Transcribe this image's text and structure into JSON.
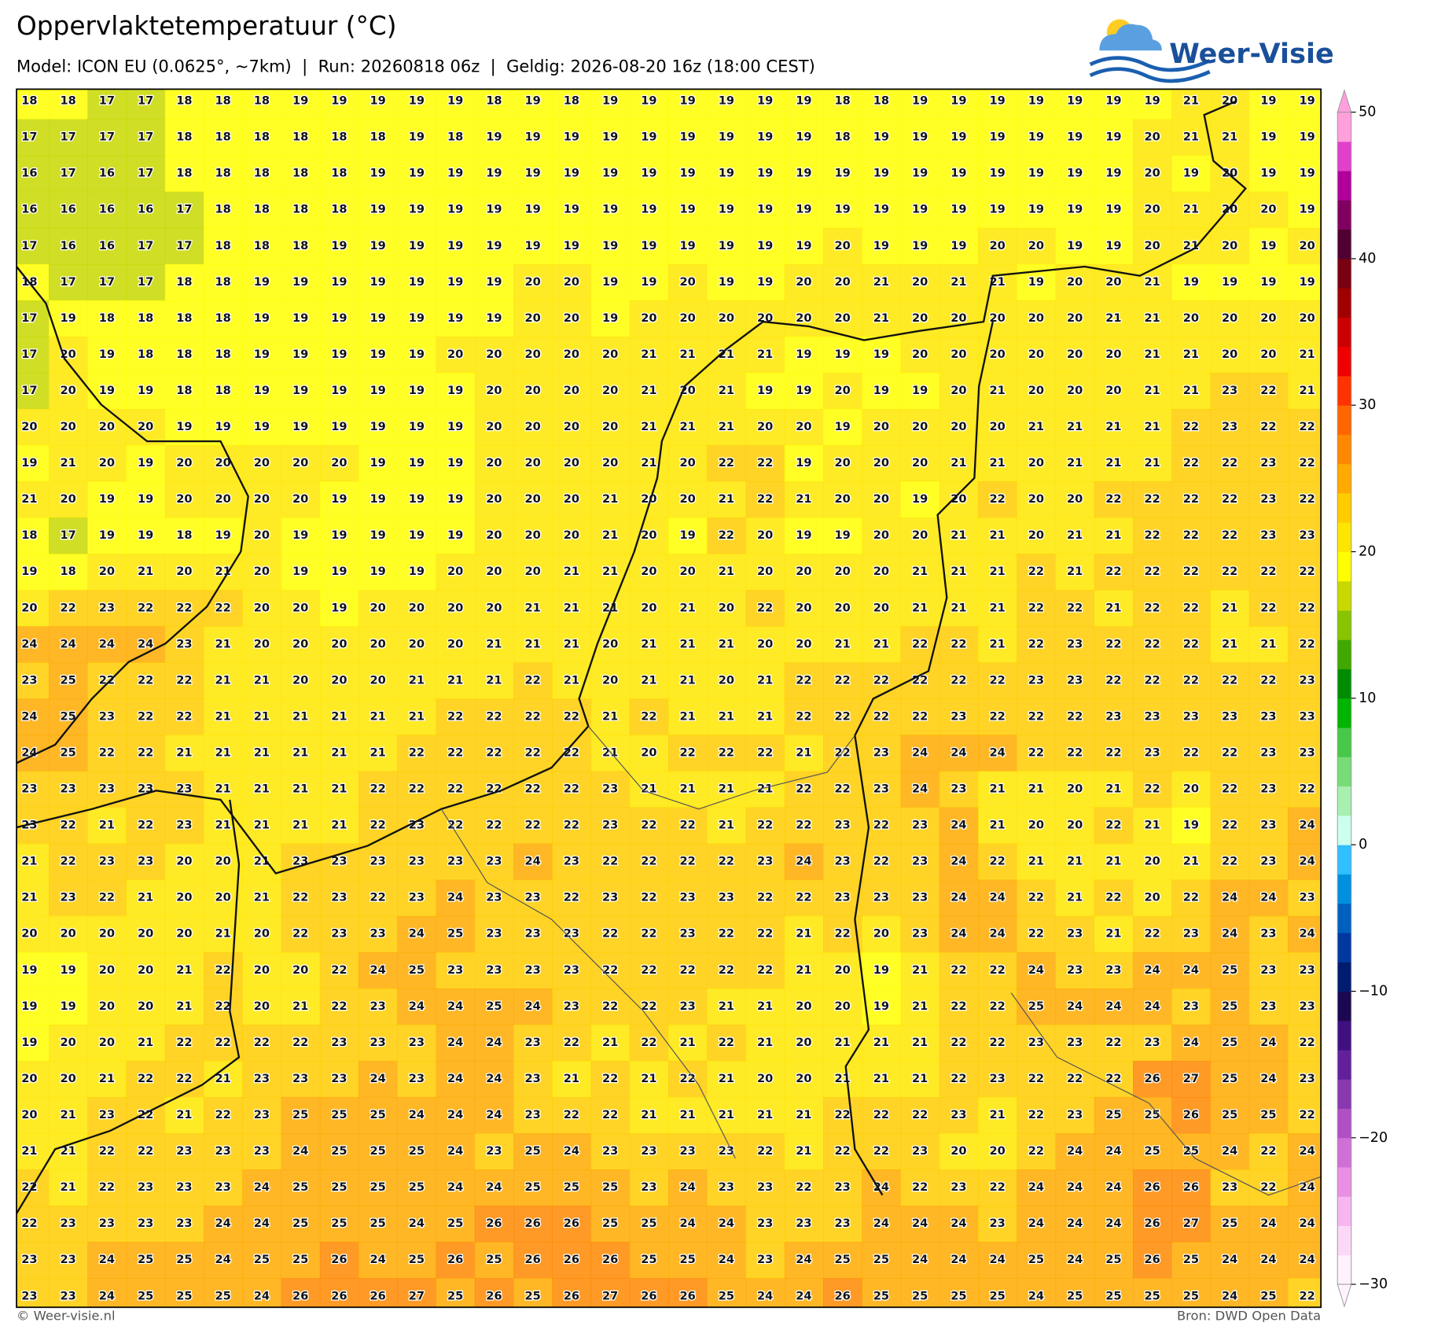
{
  "header": {
    "title": "Oppervlaktetemperatuur (°C)",
    "subtitle": "Model: ICON EU (0.0625°, ~7km)  |  Run: 20260818 06z  |  Geldig: 2026-08-20 16z (18:00 CEST)",
    "logo": "Weer-Visie"
  },
  "chart_data": {
    "type": "heatmap",
    "grid": [
      [
        18,
        18,
        17,
        17,
        18,
        18,
        18,
        19,
        19,
        19,
        19,
        19,
        18,
        19,
        18,
        19,
        19,
        19,
        19,
        19,
        19,
        18,
        18,
        19,
        19,
        19,
        19,
        19,
        19,
        19,
        21,
        20,
        19,
        19
      ],
      [
        17,
        17,
        17,
        17,
        18,
        18,
        18,
        18,
        18,
        18,
        19,
        18,
        19,
        19,
        19,
        19,
        19,
        19,
        19,
        19,
        19,
        18,
        19,
        19,
        19,
        19,
        19,
        19,
        19,
        20,
        21,
        21,
        19,
        19
      ],
      [
        16,
        17,
        16,
        17,
        18,
        18,
        18,
        18,
        18,
        19,
        19,
        19,
        19,
        19,
        19,
        19,
        19,
        19,
        19,
        19,
        19,
        19,
        19,
        19,
        19,
        19,
        19,
        19,
        19,
        20,
        19,
        20,
        19,
        19
      ],
      [
        16,
        16,
        16,
        16,
        17,
        18,
        18,
        18,
        18,
        19,
        19,
        19,
        19,
        19,
        19,
        19,
        19,
        19,
        19,
        19,
        19,
        19,
        19,
        19,
        19,
        19,
        19,
        19,
        19,
        20,
        21,
        20,
        20,
        19
      ],
      [
        17,
        16,
        16,
        17,
        17,
        18,
        18,
        18,
        19,
        19,
        19,
        19,
        19,
        19,
        19,
        19,
        19,
        19,
        19,
        19,
        19,
        20,
        19,
        19,
        19,
        20,
        20,
        19,
        19,
        20,
        21,
        20,
        19,
        20
      ],
      [
        18,
        17,
        17,
        17,
        18,
        18,
        19,
        19,
        19,
        19,
        19,
        19,
        19,
        20,
        20,
        19,
        19,
        20,
        19,
        19,
        20,
        20,
        21,
        20,
        21,
        21,
        19,
        20,
        20,
        21,
        19,
        19,
        19,
        19
      ],
      [
        17,
        19,
        18,
        18,
        18,
        18,
        19,
        19,
        19,
        19,
        19,
        19,
        19,
        20,
        20,
        19,
        20,
        20,
        20,
        20,
        20,
        20,
        21,
        20,
        20,
        20,
        20,
        20,
        21,
        21,
        20,
        20,
        20,
        20
      ],
      [
        17,
        20,
        19,
        18,
        18,
        18,
        19,
        19,
        19,
        19,
        19,
        20,
        20,
        20,
        20,
        20,
        21,
        21,
        21,
        21,
        19,
        19,
        19,
        20,
        20,
        20,
        20,
        20,
        20,
        21,
        21,
        20,
        20,
        21
      ],
      [
        17,
        20,
        19,
        19,
        18,
        18,
        19,
        19,
        19,
        19,
        19,
        19,
        20,
        20,
        20,
        20,
        21,
        20,
        21,
        19,
        19,
        20,
        19,
        19,
        20,
        21,
        20,
        20,
        20,
        21,
        21,
        23,
        22,
        21
      ],
      [
        20,
        20,
        20,
        20,
        19,
        19,
        19,
        19,
        19,
        19,
        19,
        19,
        20,
        20,
        20,
        20,
        21,
        21,
        21,
        20,
        20,
        19,
        20,
        20,
        20,
        20,
        21,
        21,
        21,
        21,
        22,
        23,
        22,
        22
      ],
      [
        19,
        21,
        20,
        19,
        20,
        20,
        20,
        20,
        20,
        19,
        19,
        19,
        20,
        20,
        20,
        20,
        21,
        20,
        22,
        22,
        19,
        20,
        20,
        20,
        21,
        21,
        20,
        21,
        21,
        21,
        22,
        22,
        23,
        22
      ],
      [
        21,
        20,
        19,
        19,
        20,
        20,
        20,
        20,
        19,
        19,
        19,
        19,
        20,
        20,
        20,
        21,
        20,
        20,
        21,
        22,
        21,
        20,
        20,
        19,
        20,
        22,
        20,
        20,
        22,
        22,
        22,
        22,
        23,
        22
      ],
      [
        18,
        17,
        19,
        19,
        18,
        19,
        20,
        19,
        19,
        19,
        19,
        19,
        20,
        20,
        20,
        21,
        20,
        19,
        22,
        20,
        19,
        19,
        20,
        20,
        21,
        21,
        20,
        21,
        21,
        22,
        22,
        22,
        23,
        23
      ],
      [
        19,
        18,
        20,
        21,
        20,
        21,
        20,
        19,
        19,
        19,
        19,
        20,
        20,
        20,
        21,
        21,
        20,
        20,
        21,
        20,
        20,
        20,
        20,
        21,
        21,
        21,
        22,
        21,
        22,
        22,
        22,
        22,
        22,
        22
      ],
      [
        20,
        22,
        23,
        22,
        22,
        22,
        20,
        20,
        19,
        20,
        20,
        20,
        20,
        21,
        21,
        21,
        20,
        21,
        20,
        22,
        20,
        20,
        20,
        21,
        21,
        21,
        22,
        22,
        21,
        22,
        22,
        21,
        22,
        22
      ],
      [
        24,
        24,
        24,
        24,
        23,
        21,
        20,
        20,
        20,
        20,
        20,
        20,
        21,
        21,
        21,
        20,
        21,
        21,
        21,
        20,
        20,
        21,
        21,
        22,
        22,
        21,
        22,
        23,
        22,
        22,
        22,
        21,
        21,
        22
      ],
      [
        23,
        25,
        22,
        22,
        22,
        21,
        21,
        20,
        20,
        20,
        21,
        21,
        21,
        22,
        21,
        20,
        21,
        21,
        20,
        21,
        22,
        22,
        22,
        22,
        22,
        22,
        23,
        23,
        22,
        22,
        22,
        22,
        22,
        23
      ],
      [
        24,
        25,
        23,
        22,
        22,
        21,
        21,
        21,
        21,
        21,
        21,
        22,
        22,
        22,
        22,
        21,
        22,
        21,
        21,
        21,
        22,
        22,
        22,
        22,
        23,
        22,
        22,
        22,
        23,
        23,
        23,
        23,
        23,
        23
      ],
      [
        24,
        25,
        22,
        22,
        21,
        21,
        21,
        21,
        21,
        21,
        22,
        22,
        22,
        22,
        22,
        21,
        20,
        22,
        22,
        22,
        21,
        22,
        23,
        24,
        24,
        24,
        22,
        22,
        22,
        23,
        22,
        22,
        23,
        23
      ],
      [
        23,
        23,
        23,
        23,
        23,
        21,
        21,
        21,
        21,
        22,
        22,
        22,
        22,
        22,
        22,
        23,
        21,
        21,
        21,
        21,
        22,
        22,
        23,
        24,
        23,
        21,
        21,
        20,
        21,
        22,
        20,
        22,
        23,
        22
      ],
      [
        23,
        22,
        21,
        22,
        23,
        21,
        21,
        21,
        21,
        22,
        23,
        22,
        22,
        22,
        22,
        23,
        22,
        22,
        21,
        22,
        22,
        23,
        22,
        23,
        24,
        21,
        20,
        20,
        22,
        21,
        19,
        22,
        23,
        24
      ],
      [
        21,
        22,
        23,
        23,
        20,
        20,
        21,
        23,
        23,
        23,
        23,
        23,
        23,
        24,
        23,
        22,
        22,
        22,
        22,
        23,
        24,
        23,
        22,
        23,
        24,
        22,
        21,
        21,
        21,
        20,
        21,
        22,
        23,
        24
      ],
      [
        21,
        23,
        22,
        21,
        20,
        20,
        21,
        22,
        23,
        22,
        23,
        24,
        23,
        23,
        22,
        23,
        22,
        23,
        23,
        22,
        22,
        23,
        23,
        23,
        24,
        24,
        22,
        21,
        22,
        20,
        22,
        24,
        24,
        23
      ],
      [
        20,
        20,
        20,
        20,
        20,
        21,
        20,
        22,
        23,
        23,
        24,
        25,
        23,
        23,
        23,
        22,
        22,
        23,
        22,
        22,
        21,
        22,
        20,
        23,
        24,
        24,
        22,
        23,
        21,
        22,
        23,
        24,
        23,
        24
      ],
      [
        19,
        19,
        20,
        20,
        21,
        22,
        20,
        20,
        22,
        24,
        25,
        23,
        23,
        23,
        23,
        22,
        22,
        22,
        22,
        22,
        21,
        20,
        19,
        21,
        22,
        22,
        24,
        23,
        23,
        24,
        24,
        25,
        23,
        23
      ],
      [
        19,
        19,
        20,
        20,
        21,
        22,
        20,
        21,
        22,
        23,
        24,
        24,
        25,
        24,
        23,
        22,
        22,
        23,
        21,
        21,
        20,
        20,
        19,
        21,
        22,
        22,
        25,
        24,
        24,
        24,
        23,
        25,
        23,
        23
      ],
      [
        19,
        20,
        20,
        21,
        22,
        22,
        22,
        22,
        23,
        23,
        23,
        24,
        24,
        23,
        22,
        21,
        22,
        21,
        22,
        21,
        20,
        21,
        21,
        21,
        22,
        22,
        23,
        23,
        22,
        23,
        24,
        25,
        24,
        22
      ],
      [
        20,
        20,
        21,
        22,
        22,
        21,
        23,
        23,
        23,
        24,
        23,
        24,
        24,
        23,
        21,
        22,
        21,
        22,
        21,
        20,
        20,
        21,
        21,
        21,
        22,
        23,
        22,
        22,
        22,
        26,
        27,
        25,
        24,
        23
      ],
      [
        20,
        21,
        23,
        22,
        21,
        22,
        23,
        25,
        25,
        25,
        24,
        24,
        24,
        23,
        22,
        22,
        21,
        21,
        21,
        21,
        21,
        22,
        22,
        22,
        23,
        21,
        22,
        23,
        25,
        25,
        26,
        25,
        25,
        22
      ],
      [
        21,
        21,
        22,
        22,
        23,
        23,
        23,
        24,
        25,
        25,
        25,
        24,
        23,
        25,
        24,
        23,
        23,
        23,
        23,
        22,
        21,
        22,
        22,
        23,
        20,
        20,
        22,
        24,
        24,
        25,
        25,
        24,
        22,
        24
      ],
      [
        22,
        21,
        22,
        23,
        23,
        23,
        24,
        25,
        25,
        25,
        25,
        24,
        24,
        25,
        25,
        25,
        23,
        24,
        23,
        23,
        22,
        23,
        24,
        22,
        23,
        22,
        24,
        24,
        24,
        26,
        26,
        23,
        22,
        24
      ],
      [
        22,
        23,
        23,
        23,
        23,
        24,
        24,
        25,
        25,
        25,
        24,
        25,
        26,
        26,
        26,
        25,
        25,
        24,
        24,
        23,
        23,
        23,
        24,
        24,
        24,
        23,
        24,
        24,
        24,
        26,
        27,
        25,
        24,
        24
      ],
      [
        23,
        23,
        24,
        25,
        25,
        24,
        25,
        25,
        26,
        24,
        25,
        26,
        25,
        26,
        26,
        26,
        25,
        25,
        24,
        23,
        24,
        25,
        25,
        24,
        24,
        24,
        25,
        24,
        25,
        26,
        25,
        24,
        24,
        24
      ],
      [
        23,
        23,
        24,
        25,
        25,
        25,
        24,
        26,
        26,
        26,
        27,
        25,
        26,
        25,
        26,
        27,
        26,
        26,
        25,
        24,
        24,
        26,
        25,
        25,
        25,
        25,
        24,
        25,
        25,
        25,
        25,
        24,
        25,
        22
      ]
    ],
    "colorbar": {
      "ylim": [
        -30,
        50
      ],
      "yticks": [
        50,
        40,
        30,
        20,
        10,
        0,
        {
          "value": -10,
          "label": "−10"
        },
        {
          "value": -20,
          "label": "−20"
        },
        {
          "value": -30,
          "label": "−30"
        }
      ],
      "colors": [
        "#fef2fe",
        "#fcd8f8",
        "#f8b6f0",
        "#ea90e4",
        "#d070d6",
        "#b050c4",
        "#8a38b0",
        "#62209c",
        "#401080",
        "#1c0850",
        "#001c70",
        "#0038a0",
        "#0060c0",
        "#0090e0",
        "#30c0ff",
        "#ccffee",
        "#a8f0b0",
        "#78dc78",
        "#48c848",
        "#00b400",
        "#008c00",
        "#40a800",
        "#88c400",
        "#c8d800",
        "#ffff00",
        "#ffe600",
        "#ffcc00",
        "#ffaa00",
        "#ff8800",
        "#ff6600",
        "#ff3300",
        "#ee0000",
        "#cc0000",
        "#a00000",
        "#780010",
        "#500030",
        "#800060",
        "#b0009a",
        "#e040cc",
        "#ffa0dd"
      ]
    }
  },
  "footer": {
    "left": "© Weer-visie.nl",
    "right": "Bron: DWD Open Data"
  }
}
